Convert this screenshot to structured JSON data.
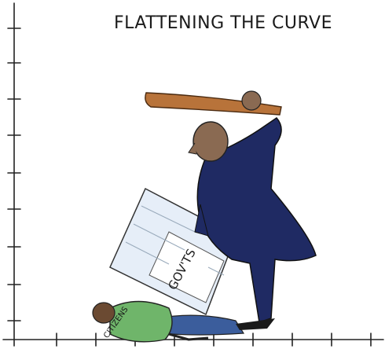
{
  "title": "FLATTENING THE CURVE",
  "paper_label": "GOV'TS",
  "person_label": "CITIZENS"
}
